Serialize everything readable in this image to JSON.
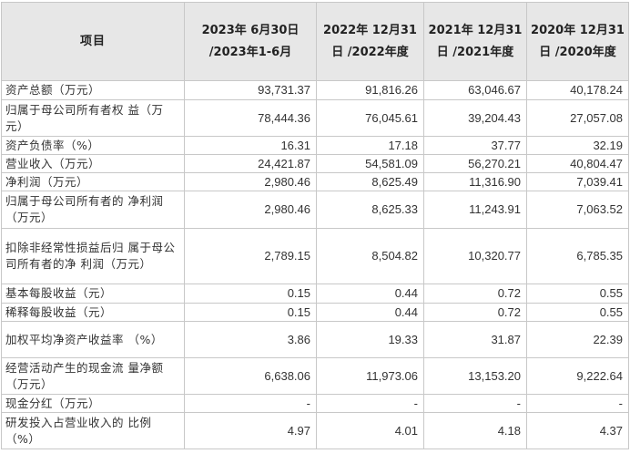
{
  "table": {
    "headers": [
      "项目",
      "2023年 6月30日 /2023年1-6月",
      "2022年 12月31日 /2022年度",
      "2021年 12月31日 /2021年度",
      "2020年 12月31日 /2020年度"
    ],
    "rows": [
      {
        "label": "资产总额（万元）",
        "values": [
          "93,731.37",
          "91,816.26",
          "63,046.67",
          "40,178.24"
        ]
      },
      {
        "label": "归属于母公司所有者权 益（万元）",
        "values": [
          "78,444.36",
          "76,045.61",
          "39,204.43",
          "27,057.08"
        ]
      },
      {
        "label": "资产负债率（%）",
        "values": [
          "16.31",
          "17.18",
          "37.77",
          "32.19"
        ]
      },
      {
        "label": "营业收入（万元）",
        "values": [
          "24,421.87",
          "54,581.09",
          "56,270.21",
          "40,804.47"
        ]
      },
      {
        "label": "净利润（万元）",
        "values": [
          "2,980.46",
          "8,625.49",
          "11,316.90",
          "7,039.41"
        ]
      },
      {
        "label": "归属于母公司所有者的 净利润（万元）",
        "values": [
          "2,980.46",
          "8,625.33",
          "11,243.91",
          "7,063.52"
        ]
      },
      {
        "label": "扣除非经常性损益后归 属于母公司所有者的净 利润（万元）",
        "values": [
          "2,789.15",
          "8,504.82",
          "10,320.77",
          "6,785.35"
        ]
      },
      {
        "label": "基本每股收益（元）",
        "values": [
          "0.15",
          "0.44",
          "0.72",
          "0.55"
        ]
      },
      {
        "label": "稀释每股收益（元）",
        "values": [
          "0.15",
          "0.44",
          "0.72",
          "0.55"
        ]
      },
      {
        "label": "加权平均净资产收益率 （%）",
        "values": [
          "3.86",
          "19.33",
          "31.87",
          "22.39"
        ]
      },
      {
        "label": "经营活动产生的现金流 量净额（万元）",
        "values": [
          "6,638.06",
          "11,973.06",
          "13,153.20",
          "9,222.64"
        ]
      },
      {
        "label": "现金分红（万元）",
        "values": [
          "-",
          "-",
          "-",
          "-"
        ]
      },
      {
        "label": "研发投入占营业收入的 比例（%）",
        "values": [
          "4.97",
          "4.01",
          "4.18",
          "4.37"
        ]
      }
    ]
  }
}
